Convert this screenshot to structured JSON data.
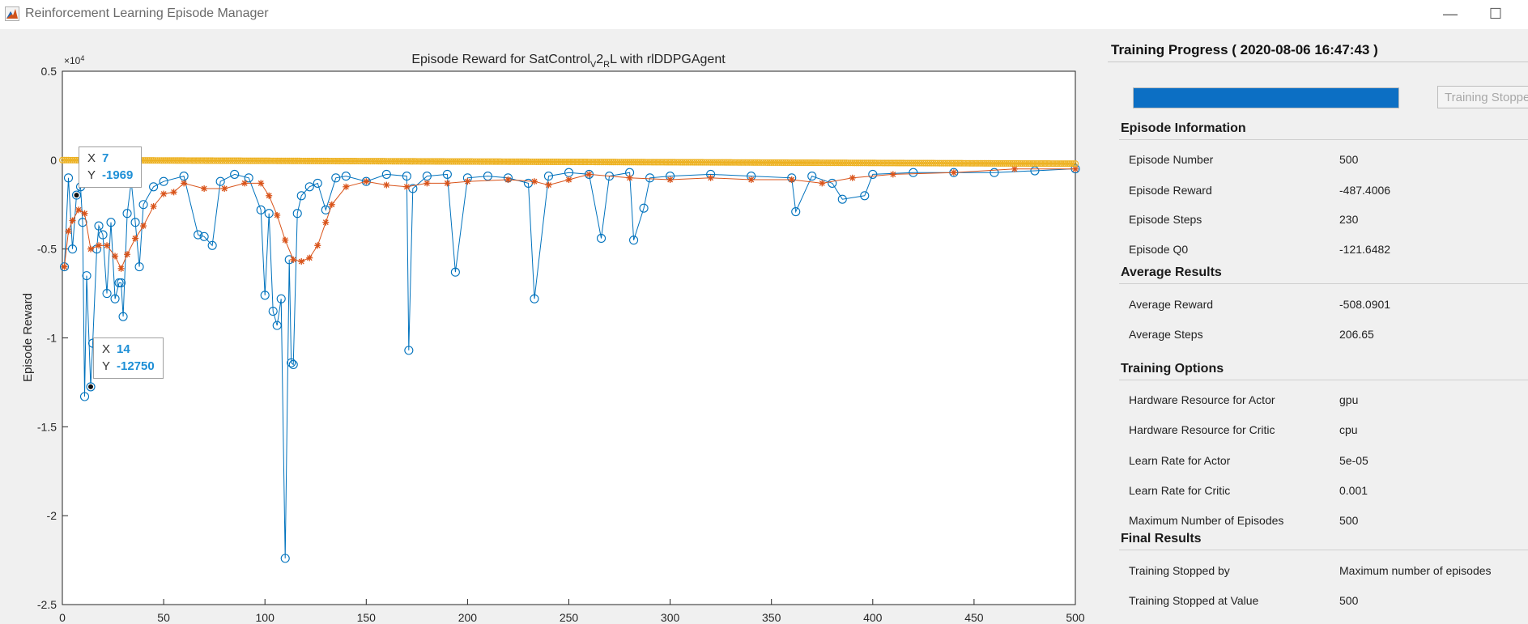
{
  "window": {
    "title": "Reinforcement Learning Episode Manager",
    "minimize": "—",
    "maximize": "☐"
  },
  "plot": {
    "title_prefix": "Episode Reward  for  SatControl",
    "title_sub1": "V",
    "title_mid": "2",
    "title_sub2": "R",
    "title_suffix": "L  with  rlDDPGAgent",
    "ylabel": "Episode Reward",
    "exponent": "×10",
    "exponent_power": "4",
    "datatips": [
      {
        "x_key": "X",
        "x_val": "7",
        "y_key": "Y",
        "y_val": "-1969"
      },
      {
        "x_key": "X",
        "x_val": "14",
        "y_key": "Y",
        "y_val": "-12750"
      }
    ]
  },
  "chart_data": {
    "type": "line",
    "title": "Episode Reward for SatControlV2RL with rlDDPGAgent",
    "xlabel": "",
    "ylabel": "Episode Reward",
    "xlim": [
      0,
      500
    ],
    "ylim": [
      -25000,
      5000
    ],
    "x_ticks": [
      0,
      50,
      100,
      150,
      200,
      250,
      300,
      350,
      400,
      450,
      500
    ],
    "y_ticks": [
      0.5,
      0,
      -0.5,
      -1,
      -1.5,
      -2,
      -2.5
    ],
    "y_tick_labels": [
      "0.5",
      "0",
      "-0.5",
      "-1",
      "-1.5",
      "-2",
      "-2.5"
    ],
    "y_multiplier_label": "×10^4",
    "series": [
      {
        "marker": "circle",
        "color": "#0072bd",
        "points": [
          [
            1,
            -6000
          ],
          [
            3,
            -1000
          ],
          [
            5,
            -5000
          ],
          [
            7,
            -1969
          ],
          [
            9,
            -1500
          ],
          [
            10,
            -3500
          ],
          [
            11,
            -13300
          ],
          [
            12,
            -6500
          ],
          [
            14,
            -12750
          ],
          [
            15,
            -10300
          ],
          [
            17,
            -5000
          ],
          [
            18,
            -3700
          ],
          [
            20,
            -4200
          ],
          [
            22,
            -7500
          ],
          [
            24,
            -3500
          ],
          [
            26,
            -7800
          ],
          [
            28,
            -6900
          ],
          [
            29,
            -6900
          ],
          [
            30,
            -8800
          ],
          [
            32,
            -3000
          ],
          [
            34,
            -1200
          ],
          [
            36,
            -3500
          ],
          [
            38,
            -6000
          ],
          [
            40,
            -2500
          ],
          [
            45,
            -1500
          ],
          [
            50,
            -1200
          ],
          [
            60,
            -900
          ],
          [
            67,
            -4200
          ],
          [
            70,
            -4300
          ],
          [
            74,
            -4800
          ],
          [
            78,
            -1200
          ],
          [
            85,
            -800
          ],
          [
            92,
            -1000
          ],
          [
            98,
            -2800
          ],
          [
            100,
            -7600
          ],
          [
            102,
            -3000
          ],
          [
            104,
            -8500
          ],
          [
            106,
            -9300
          ],
          [
            108,
            -7800
          ],
          [
            110,
            -22400
          ],
          [
            112,
            -5600
          ],
          [
            113,
            -11400
          ],
          [
            114,
            -11500
          ],
          [
            116,
            -3000
          ],
          [
            118,
            -2000
          ],
          [
            122,
            -1500
          ],
          [
            126,
            -1300
          ],
          [
            130,
            -2800
          ],
          [
            135,
            -1000
          ],
          [
            140,
            -900
          ],
          [
            150,
            -1200
          ],
          [
            160,
            -800
          ],
          [
            170,
            -900
          ],
          [
            171,
            -10700
          ],
          [
            173,
            -1600
          ],
          [
            180,
            -900
          ],
          [
            190,
            -800
          ],
          [
            194,
            -6300
          ],
          [
            200,
            -1000
          ],
          [
            210,
            -900
          ],
          [
            220,
            -1000
          ],
          [
            230,
            -1300
          ],
          [
            233,
            -7800
          ],
          [
            240,
            -900
          ],
          [
            250,
            -700
          ],
          [
            260,
            -800
          ],
          [
            266,
            -4400
          ],
          [
            270,
            -900
          ],
          [
            280,
            -700
          ],
          [
            282,
            -4500
          ],
          [
            287,
            -2700
          ],
          [
            290,
            -1000
          ],
          [
            300,
            -900
          ],
          [
            320,
            -800
          ],
          [
            340,
            -900
          ],
          [
            360,
            -1000
          ],
          [
            362,
            -2900
          ],
          [
            370,
            -900
          ],
          [
            380,
            -1300
          ],
          [
            385,
            -2200
          ],
          [
            396,
            -2000
          ],
          [
            400,
            -800
          ],
          [
            420,
            -700
          ],
          [
            440,
            -700
          ],
          [
            460,
            -700
          ],
          [
            480,
            -600
          ],
          [
            500,
            -487
          ]
        ]
      },
      {
        "marker": "asterisk",
        "color": "#d95319",
        "points": [
          [
            1,
            -6000
          ],
          [
            3,
            -4000
          ],
          [
            5,
            -3400
          ],
          [
            8,
            -2800
          ],
          [
            11,
            -3000
          ],
          [
            14,
            -5000
          ],
          [
            18,
            -4800
          ],
          [
            22,
            -4800
          ],
          [
            26,
            -5400
          ],
          [
            29,
            -6100
          ],
          [
            32,
            -5300
          ],
          [
            36,
            -4400
          ],
          [
            40,
            -3700
          ],
          [
            45,
            -2600
          ],
          [
            50,
            -1900
          ],
          [
            55,
            -1800
          ],
          [
            60,
            -1300
          ],
          [
            70,
            -1600
          ],
          [
            80,
            -1600
          ],
          [
            90,
            -1300
          ],
          [
            98,
            -1300
          ],
          [
            102,
            -2000
          ],
          [
            106,
            -3100
          ],
          [
            110,
            -4500
          ],
          [
            114,
            -5600
          ],
          [
            118,
            -5700
          ],
          [
            122,
            -5500
          ],
          [
            126,
            -4800
          ],
          [
            130,
            -3500
          ],
          [
            133,
            -2500
          ],
          [
            140,
            -1500
          ],
          [
            150,
            -1200
          ],
          [
            160,
            -1400
          ],
          [
            170,
            -1500
          ],
          [
            180,
            -1300
          ],
          [
            190,
            -1300
          ],
          [
            200,
            -1200
          ],
          [
            220,
            -1100
          ],
          [
            233,
            -1200
          ],
          [
            240,
            -1400
          ],
          [
            250,
            -1100
          ],
          [
            260,
            -800
          ],
          [
            280,
            -1000
          ],
          [
            300,
            -1100
          ],
          [
            320,
            -1000
          ],
          [
            340,
            -1100
          ],
          [
            360,
            -1100
          ],
          [
            375,
            -1300
          ],
          [
            390,
            -1000
          ],
          [
            410,
            -800
          ],
          [
            440,
            -700
          ],
          [
            470,
            -500
          ],
          [
            500,
            -500
          ]
        ]
      },
      {
        "marker": "circle",
        "color": "#edb120",
        "points": [
          [
            0,
            0
          ],
          [
            500,
            -200
          ]
        ]
      }
    ]
  },
  "progress": {
    "title": "Training Progress ( 2020-08-06 16:47:43 )",
    "fraction": 1.0,
    "stop_label": "Training Stopped"
  },
  "episode_info": {
    "heading": "Episode Information",
    "rows": [
      {
        "label": "Episode Number",
        "value": "500"
      },
      {
        "label": "Episode Reward",
        "value": "-487.4006"
      },
      {
        "label": "Episode Steps",
        "value": "230"
      },
      {
        "label": "Episode Q0",
        "value": "-121.6482"
      }
    ]
  },
  "average_results": {
    "heading": "Average Results",
    "rows": [
      {
        "label": "Average Reward",
        "value": "-508.0901"
      },
      {
        "label": "Average Steps",
        "value": "206.65"
      }
    ]
  },
  "training_options": {
    "heading": "Training Options",
    "rows": [
      {
        "label": "Hardware Resource for Actor",
        "value": "gpu"
      },
      {
        "label": "Hardware Resource for Critic",
        "value": "cpu"
      },
      {
        "label": "Learn Rate for Actor",
        "value": "5e-05"
      },
      {
        "label": "Learn Rate for Critic",
        "value": "0.001"
      },
      {
        "label": "Maximum Number of Episodes",
        "value": "500"
      }
    ]
  },
  "final_results": {
    "heading": "Final Results",
    "rows": [
      {
        "label": "Training Stopped by",
        "value": "Maximum number of episodes"
      },
      {
        "label": "Training Stopped at Value",
        "value": "500"
      }
    ]
  }
}
